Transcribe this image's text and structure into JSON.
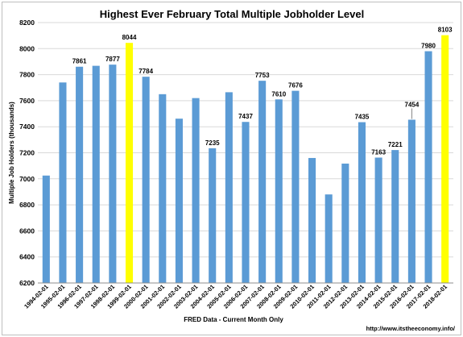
{
  "chart_data": {
    "type": "bar",
    "title": "Highest Ever February Total Multiple Jobholder Level",
    "xlabel": "FRED Data - Current Month Only",
    "ylabel": "Multiple Job Holders (thousands)",
    "ylim": [
      6200,
      8200
    ],
    "yticks": [
      6200,
      6400,
      6600,
      6800,
      7000,
      7200,
      7400,
      7600,
      7800,
      8000,
      8200
    ],
    "grid": true,
    "legend": "none",
    "categories": [
      "1994-02-01",
      "1995-02-01",
      "1996-02-01",
      "1997-02-01",
      "1998-02-01",
      "1999-02-01",
      "2000-02-01",
      "2001-02-01",
      "2002-02-01",
      "2003-02-01",
      "2004-02-01",
      "2005-02-01",
      "2006-02-01",
      "2007-02-01",
      "2008-02-01",
      "2009-02-01",
      "2010-02-01",
      "2011-02-01",
      "2012-02-01",
      "2013-02-01",
      "2014-02-01",
      "2015-02-01",
      "2016-02-01",
      "2017-02-01",
      "2018-02-01"
    ],
    "values": [
      7025,
      7740,
      7861,
      7868,
      7877,
      8044,
      7784,
      7650,
      7462,
      7620,
      7235,
      7665,
      7437,
      7753,
      7610,
      7676,
      7160,
      6880,
      7117,
      7435,
      7163,
      7221,
      7454,
      7980,
      8103
    ],
    "data_labels": [
      null,
      null,
      "7861",
      null,
      "7877",
      "8044",
      "7784",
      null,
      null,
      null,
      "7235",
      null,
      "7437",
      "7753",
      "7610",
      "7676",
      null,
      null,
      null,
      "7435",
      "7163",
      "7221",
      "7454",
      "7980",
      "8103"
    ],
    "highlighted_categories": [
      "1999-02-01",
      "2018-02-01"
    ],
    "bar_color": "#5b9bd5",
    "highlight_color": "#ffff00",
    "credit": "http://www.itstheeconomy.info/"
  }
}
